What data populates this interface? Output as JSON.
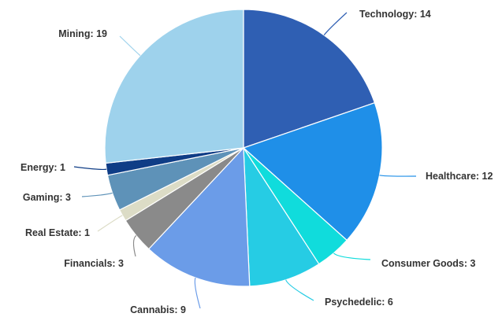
{
  "chart_data": {
    "type": "pie",
    "start_angle_deg": 0,
    "direction": "clockwise",
    "slices": [
      {
        "label": "Technology",
        "value": 14,
        "text": "Technology: 14",
        "color": "#2f5fb3"
      },
      {
        "label": "Healthcare",
        "value": 12,
        "text": "Healthcare: 12",
        "color": "#1f8fe8"
      },
      {
        "label": "Consumer Goods",
        "value": 3,
        "text": "Consumer Goods: 3",
        "color": "#10dcdc"
      },
      {
        "label": "Psychedelic",
        "value": 6,
        "text": "Psychedelic: 6",
        "color": "#26cce4"
      },
      {
        "label": "Cannabis",
        "value": 9,
        "text": "Cannabis: 9",
        "color": "#6b9ce8"
      },
      {
        "label": "Financials",
        "value": 3,
        "text": "Financials: 3",
        "color": "#8a8a8a"
      },
      {
        "label": "Real Estate",
        "value": 1,
        "text": "Real Estate: 1",
        "color": "#dcdcc6"
      },
      {
        "label": "Gaming",
        "value": 3,
        "text": "Gaming: 3",
        "color": "#5e92b8"
      },
      {
        "label": "Energy",
        "value": 1,
        "text": "Energy: 1",
        "color": "#0f3d86"
      },
      {
        "label": "Mining",
        "value": 19,
        "text": "Mining: 19",
        "color": "#9ed2ec"
      }
    ],
    "title": "",
    "legend": "none"
  }
}
